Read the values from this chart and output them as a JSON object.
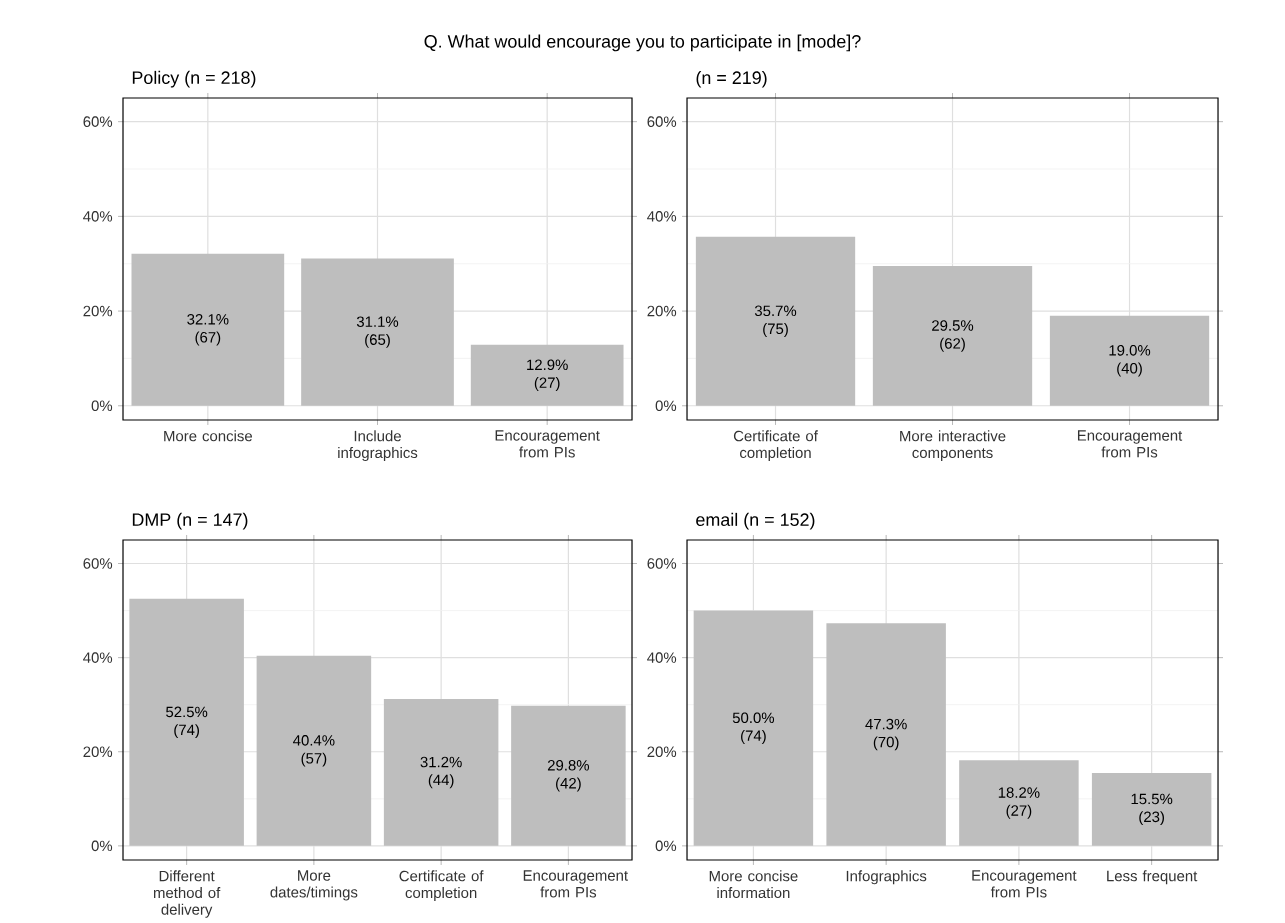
{
  "chart_data": [
    {
      "type": "bar",
      "title": "Policy (n = 218)",
      "annotations": [
        "Q. What would encourage you to participate in [mode]?"
      ],
      "categories": [
        "More concise",
        "Include infographics",
        "Encouragement from PIs"
      ],
      "values": [
        32.1,
        31.1,
        12.9
      ],
      "value_labels": [
        "32.1% (67)",
        "31.1% (65)",
        "12.9% (27)"
      ],
      "color": "#bebebe",
      "ylim": [
        -3,
        65
      ],
      "yticks": [
        {
          "value": 0,
          "label": "0%"
        },
        {
          "value": 20,
          "label": "20%"
        },
        {
          "value": 40,
          "label": "40%"
        },
        {
          "value": 60,
          "label": "60%"
        }
      ],
      "grid": true
    },
    {
      "type": "bar",
      "title": "(n = 219)",
      "categories": [
        "Certificate of completion",
        "More interactive components",
        "Encouragement from PIs"
      ],
      "values": [
        35.7,
        29.5,
        19.0
      ],
      "value_labels": [
        "35.7% (75)",
        "29.5% (62)",
        "19.0% (40)"
      ],
      "color": "#bebebe",
      "ylim": [
        -3,
        65
      ],
      "yticks": [
        {
          "value": 0,
          "label": "0%"
        },
        {
          "value": 20,
          "label": "20%"
        },
        {
          "value": 40,
          "label": "40%"
        },
        {
          "value": 60,
          "label": "60%"
        }
      ],
      "grid": true
    },
    {
      "type": "bar",
      "title": "DMP (n = 147)",
      "categories": [
        "Different method of delivery",
        "More dates/timings",
        "Certificate of completion",
        "Encouragement from PIs"
      ],
      "values": [
        52.5,
        40.4,
        31.2,
        29.8
      ],
      "value_labels": [
        "52.5% (74)",
        "40.4% (57)",
        "31.2% (44)",
        "29.8% (42)"
      ],
      "color": "#bebebe",
      "ylim": [
        -3,
        65
      ],
      "yticks": [
        {
          "value": 0,
          "label": "0%"
        },
        {
          "value": 20,
          "label": "20%"
        },
        {
          "value": 40,
          "label": "40%"
        },
        {
          "value": 60,
          "label": "60%"
        }
      ],
      "grid": true
    },
    {
      "type": "bar",
      "title": "email (n = 152)",
      "categories": [
        "More concise information",
        "Infographics",
        "Encouragement from PIs",
        "Less frequent"
      ],
      "values": [
        50.0,
        47.3,
        18.2,
        15.5
      ],
      "value_labels": [
        "50.0% (74)",
        "47.3% (70)",
        "18.2% (27)",
        "15.5% (23)"
      ],
      "color": "#bebebe",
      "ylim": [
        -3,
        65
      ],
      "yticks": [
        {
          "value": 0,
          "label": "0%"
        },
        {
          "value": 20,
          "label": "20%"
        },
        {
          "value": 40,
          "label": "40%"
        },
        {
          "value": 60,
          "label": "60%"
        }
      ],
      "grid": true
    }
  ]
}
